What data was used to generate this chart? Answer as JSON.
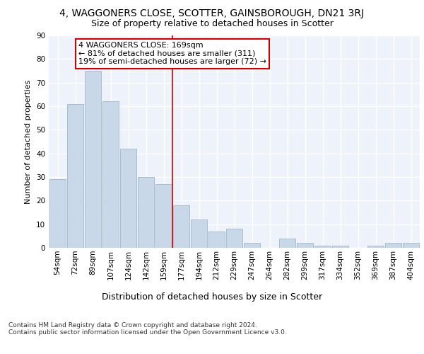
{
  "title": "4, WAGGONERS CLOSE, SCOTTER, GAINSBOROUGH, DN21 3RJ",
  "subtitle": "Size of property relative to detached houses in Scotter",
  "xlabel": "Distribution of detached houses by size in Scotter",
  "ylabel": "Number of detached properties",
  "bar_color": "#c8d8e8",
  "bar_edge_color": "#a0b8cc",
  "background_color": "#eef2fa",
  "grid_color": "#ffffff",
  "annotation_box_color": "#cc0000",
  "vline_color": "#cc0000",
  "vline_x_bin_index": 6,
  "annotation_text": "4 WAGGONERS CLOSE: 169sqm\n← 81% of detached houses are smaller (311)\n19% of semi-detached houses are larger (72) →",
  "bin_labels": [
    "54sqm",
    "72sqm",
    "89sqm",
    "107sqm",
    "124sqm",
    "142sqm",
    "159sqm",
    "177sqm",
    "194sqm",
    "212sqm",
    "229sqm",
    "247sqm",
    "264sqm",
    "282sqm",
    "299sqm",
    "317sqm",
    "334sqm",
    "352sqm",
    "369sqm",
    "387sqm",
    "404sqm"
  ],
  "bar_heights": [
    29,
    61,
    75,
    62,
    42,
    30,
    27,
    18,
    12,
    7,
    8,
    2,
    0,
    4,
    2,
    1,
    1,
    0,
    1,
    2,
    2
  ],
  "ylim": [
    0,
    90
  ],
  "yticks": [
    0,
    10,
    20,
    30,
    40,
    50,
    60,
    70,
    80,
    90
  ],
  "footer_text": "Contains HM Land Registry data © Crown copyright and database right 2024.\nContains public sector information licensed under the Open Government Licence v3.0.",
  "title_fontsize": 10,
  "subtitle_fontsize": 9,
  "xlabel_fontsize": 9,
  "ylabel_fontsize": 8,
  "tick_fontsize": 7.5,
  "annotation_fontsize": 8,
  "footer_fontsize": 6.5
}
